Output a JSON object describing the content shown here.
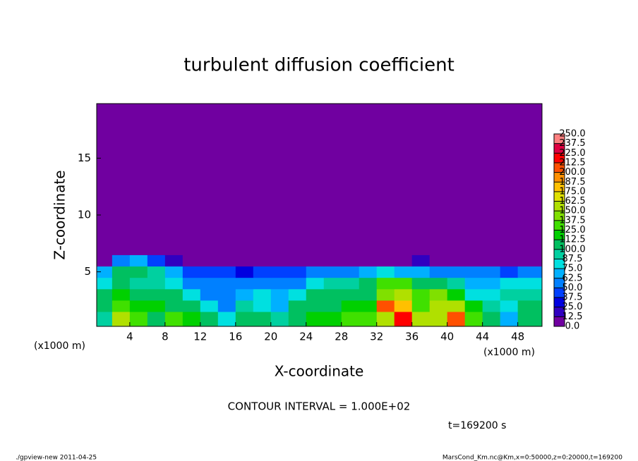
{
  "chart_data": {
    "type": "heatmap",
    "title": "turbulent diffusion coefficient",
    "x_label": "X-coordinate",
    "y_label": "Z-coordinate",
    "x_unit": "(x1000 m)",
    "y_unit": "(x1000 m)",
    "contour_interval": "CONTOUR INTERVAL = 1.000E+02",
    "time_label": "t=169200 s",
    "footer_left": "./gpview-new  2011-04-25",
    "footer_right": "MarsCond_Km.nc@Km,x=0:50000,z=0:20000,t=169200",
    "xlim": [
      0.25,
      50.75
    ],
    "ylim": [
      0.2,
      19.8
    ],
    "xticks": [
      4,
      8,
      12,
      16,
      20,
      24,
      28,
      32,
      36,
      40,
      44,
      48
    ],
    "yticks": [
      5,
      10,
      15
    ],
    "x_edges": [
      0.25,
      2,
      4,
      6,
      8,
      10,
      12,
      14,
      16,
      18,
      20,
      22,
      24,
      26,
      28,
      30,
      32,
      34,
      36,
      38,
      40,
      42,
      44,
      46,
      48,
      50.75
    ],
    "z_edges": [
      0.2,
      1.5,
      2.5,
      3.5,
      4.5,
      5.5,
      6.5,
      19.8
    ],
    "rows": [
      [
        90,
        150,
        130,
        110,
        130,
        120,
        100,
        80,
        100,
        110,
        90,
        110,
        120,
        120,
        130,
        130,
        160,
        220,
        150,
        160,
        200,
        130,
        110,
        70,
        100
      ],
      [
        110,
        130,
        120,
        120,
        110,
        100,
        80,
        60,
        90,
        80,
        70,
        100,
        110,
        110,
        120,
        120,
        200,
        180,
        130,
        150,
        150,
        120,
        90,
        80,
        110
      ],
      [
        100,
        120,
        110,
        100,
        100,
        80,
        60,
        50,
        70,
        80,
        70,
        80,
        100,
        100,
        110,
        110,
        140,
        150,
        130,
        140,
        120,
        80,
        80,
        90,
        90
      ],
      [
        80,
        110,
        90,
        90,
        80,
        60,
        50,
        60,
        50,
        60,
        60,
        60,
        80,
        90,
        90,
        100,
        130,
        130,
        110,
        110,
        90,
        70,
        70,
        80,
        80
      ],
      [
        70,
        100,
        100,
        90,
        70,
        40,
        40,
        40,
        30,
        40,
        40,
        40,
        50,
        60,
        60,
        70,
        80,
        70,
        70,
        60,
        50,
        50,
        50,
        40,
        60
      ],
      [
        5,
        60,
        70,
        40,
        20,
        10,
        5,
        5,
        5,
        10,
        10,
        10,
        10,
        10,
        10,
        10,
        10,
        10,
        20,
        10,
        5,
        5,
        5,
        5,
        5
      ],
      [
        0,
        0,
        0,
        0,
        0,
        0,
        0,
        0,
        0,
        0,
        0,
        0,
        0,
        0,
        0,
        0,
        0,
        0,
        0,
        0,
        0,
        0,
        0,
        0,
        0
      ]
    ],
    "levels": [
      {
        "value": 0,
        "label": "0.0"
      },
      12.5,
      25,
      37.5,
      50,
      62.5,
      75,
      87.5,
      100,
      112.5,
      125,
      137.5,
      150,
      162.5,
      175,
      187.5,
      200,
      212.5,
      225,
      237.5,
      250
    ],
    "level_labels": [
      "0.0",
      "12.5",
      "25.0",
      "37.5",
      "50.0",
      "62.5",
      "75.0",
      "87.5",
      "100.0",
      "112.5",
      "125.0",
      "137.5",
      "150.0",
      "162.5",
      "175.0",
      "187.5",
      "200.0",
      "212.5",
      "225.0",
      "237.5",
      "250.0"
    ],
    "colors": [
      "#7000a0",
      "#3000c0",
      "#0000e0",
      "#0040ff",
      "#0080ff",
      "#00b0ff",
      "#00e0e0",
      "#00d0a0",
      "#00c060",
      "#00d000",
      "#40e000",
      "#80e000",
      "#b0e000",
      "#e0e000",
      "#ffc000",
      "#ff9000",
      "#ff5000",
      "#ff0000",
      "#e00040",
      "#ff8080"
    ]
  }
}
